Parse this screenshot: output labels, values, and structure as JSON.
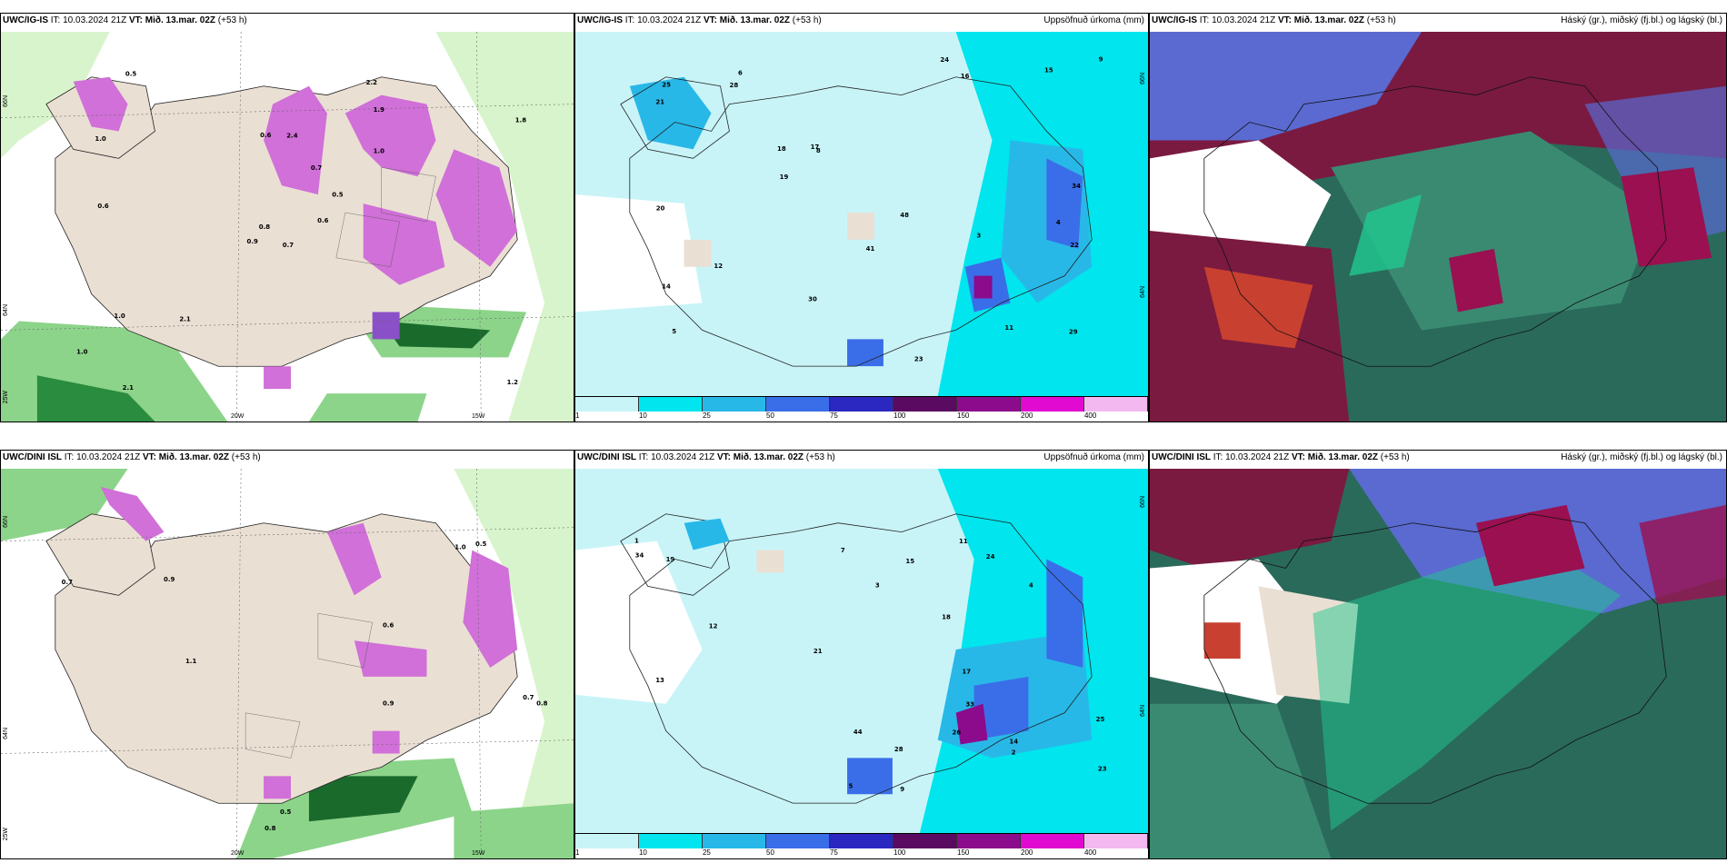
{
  "panels": [
    {
      "id": "top-left",
      "model": "UWC/IG-IS",
      "init": "IT: 10.03.2024 21Z",
      "vt_label": "VT:",
      "vt": "Mið. 13.mar. 02Z",
      "lead": "(+53 h)",
      "right_title": "",
      "lat_labels": [
        "66N",
        "64N",
        "25W"
      ],
      "lon_labels": [
        "20W",
        "15W"
      ]
    },
    {
      "id": "top-middle",
      "model": "UWC/IG-IS",
      "init": "IT: 10.03.2024 21Z",
      "vt_label": "VT:",
      "vt": "Mið. 13.mar. 02Z",
      "lead": "(+53 h)",
      "right_title": "Uppsöfnuð úrkoma (mm)",
      "lat_labels": [
        "66N",
        "64N"
      ],
      "lon_labels": []
    },
    {
      "id": "top-right",
      "model": "UWC/IG-IS",
      "init": "IT: 10.03.2024 21Z",
      "vt_label": "VT:",
      "vt": "Mið. 13.mar. 02Z",
      "lead": "(+53 h)",
      "right_title": "Háský (gr.), miðský (fj.bl.) og lágský (bl.)",
      "lat_labels": [],
      "lon_labels": []
    },
    {
      "id": "bottom-left",
      "model": "UWC/DINI ISL",
      "init": "IT: 10.03.2024 21Z",
      "vt_label": "VT:",
      "vt": "Mið. 13.mar. 02Z",
      "lead": "(+53 h)",
      "right_title": "",
      "lat_labels": [
        "66N",
        "64N",
        "25W"
      ],
      "lon_labels": [
        "20W",
        "15W"
      ]
    },
    {
      "id": "bottom-middle",
      "model": "UWC/DINI ISL",
      "init": "IT: 10.03.2024 21Z",
      "vt_label": "VT:",
      "vt": "Mið. 13.mar. 02Z",
      "lead": "(+53 h)",
      "right_title": "Uppsöfnuð úrkoma (mm)",
      "lat_labels": [
        "66N",
        "64N"
      ],
      "lon_labels": []
    },
    {
      "id": "bottom-right",
      "model": "UWC/DINI ISL",
      "init": "IT: 10.03.2024 21Z",
      "vt_label": "VT:",
      "vt": "Mið. 13.mar. 02Z",
      "lead": "(+53 h)",
      "right_title": "Háský (gr.), miðský (fj.bl.) og lágský (bl.)",
      "lat_labels": [],
      "lon_labels": []
    }
  ],
  "colorbar": {
    "labels": [
      "1",
      "10",
      "25",
      "50",
      "75",
      "100",
      "150",
      "200",
      "400"
    ],
    "colors": [
      "#c8f4f8",
      "#00e5ee",
      "#28b8e8",
      "#3a6ee8",
      "#2a28c0",
      "#5a0a60",
      "#8c0a8c",
      "#e00ad0",
      "#f4b8f0"
    ]
  },
  "colors": {
    "land": "#eadfd3",
    "snow_magenta": "#d070d8",
    "rain_green": "#3aa050",
    "precip_cyan": "#00e5ee",
    "precip_light": "#c8f4f8",
    "cloud_high": "#8a1038",
    "cloud_mid": "#5a6ad0",
    "cloud_low": "#1a5a44"
  },
  "values": {
    "tl": [
      "0.7",
      "1.0",
      "0.8",
      "1.0",
      "0.5",
      "2.1",
      "2.2",
      "2.4",
      "1.9",
      "0.6",
      "0.5",
      "1.2",
      "0.6",
      "1.8",
      "0.9",
      "1.0",
      "2.1",
      "0.6",
      "0.7",
      "1.0"
    ],
    "tm": [
      "3",
      "4",
      "5",
      "6",
      "8",
      "11",
      "14",
      "16",
      "18",
      "23",
      "21",
      "20",
      "25",
      "29",
      "30",
      "34",
      "41",
      "48",
      "17",
      "12",
      "9",
      "15",
      "19",
      "22",
      "24",
      "28"
    ],
    "bl": [
      "0.7",
      "0.9",
      "0.6",
      "0.5",
      "1.0",
      "0.8",
      "0.9",
      "1.1",
      "0.5",
      "0.8",
      "0.7"
    ],
    "bm": [
      "3",
      "2",
      "1",
      "4",
      "5",
      "7",
      "9",
      "11",
      "12",
      "13",
      "14",
      "15",
      "17",
      "19",
      "23",
      "24",
      "25",
      "26",
      "28",
      "33",
      "34",
      "44",
      "18",
      "21"
    ]
  }
}
